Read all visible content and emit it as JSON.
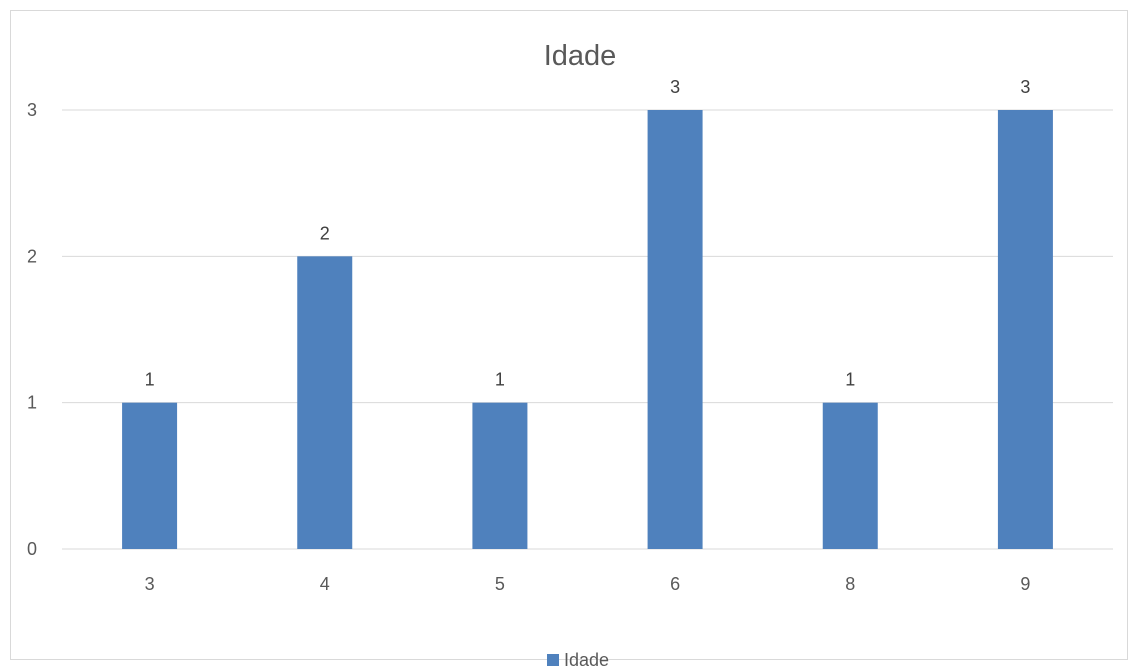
{
  "chart_data": {
    "type": "bar",
    "title": "Idade",
    "categories": [
      "3",
      "4",
      "5",
      "6",
      "8",
      "9"
    ],
    "series": [
      {
        "name": "Idade",
        "values": [
          1,
          2,
          1,
          3,
          1,
          3
        ],
        "color": "#4f81bd"
      }
    ],
    "y_ticks": [
      0,
      1,
      2,
      3
    ],
    "ylim": [
      0,
      3
    ],
    "data_labels": true,
    "grid": true,
    "legend": "bottom",
    "gridline_color": "#d9d9d9"
  }
}
